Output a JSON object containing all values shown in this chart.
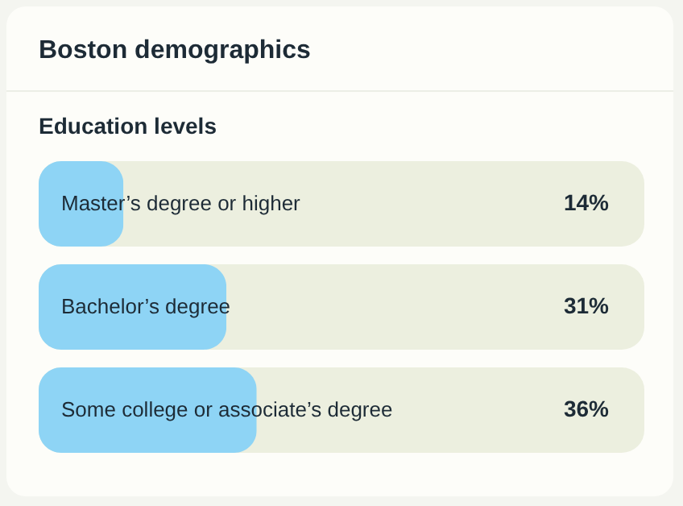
{
  "chart_data": {
    "type": "bar",
    "title": "Boston demographics",
    "subtitle": "Education levels",
    "orientation": "horizontal",
    "categories": [
      "Master’s degree or higher",
      "Bachelor’s degree",
      "Some college or associate’s degree"
    ],
    "values": [
      14,
      31,
      36
    ],
    "value_labels": [
      "14%",
      "31%",
      "36%"
    ],
    "color": "#8ed4f5",
    "xlim": [
      0,
      100
    ],
    "tick_labels": false
  }
}
